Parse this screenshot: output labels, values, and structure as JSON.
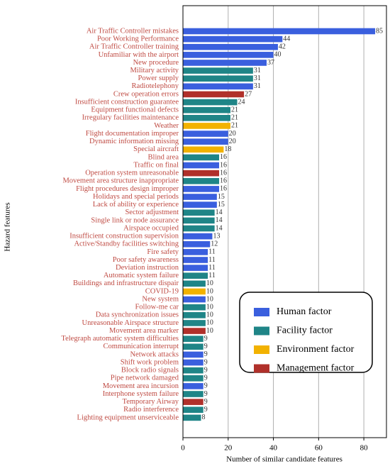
{
  "chart_data": {
    "type": "bar",
    "orientation": "horizontal",
    "xlabel": "Number of similar candidate features",
    "ylabel": "Hazard features",
    "categories": [
      "Air Traffic Controller mistakes",
      "Poor Working Performance",
      "Air Traffic Controller training",
      "Unfamiliar with the airport",
      "New procedure",
      "Military activity",
      "Power supply",
      "Radiotelephony",
      "Crew operation errors",
      "Insufficient construction guarantee",
      "Equipment functional defects",
      "Irregulary facilities maintenance",
      "Weather",
      "Flight documentation improper",
      "Dynamic information missing",
      "Special aircraft",
      "Blind area",
      "Traffic on final",
      "Operation system unreasonable",
      "Movement area structure inappropriate",
      "Flight procedures design improper",
      "Holidays and special periods",
      "Lack of ability or experience",
      "Sector adjustment",
      "Single link or node assurance",
      "Airspace occupied",
      "Insufficient construction supervision",
      "Active/Standby facilities switching",
      "Fire safety",
      "Poor safety awareness",
      "Deviation instruction",
      "Automatic system failure",
      "Buildings and infrastructure dispair",
      "COVID-19",
      "New system",
      "Follow-me car",
      "Data synchronization issues",
      "Unreasonable Airspace structure",
      "Movement area marker",
      "Telegraph automatic system difficulties",
      "Communication interrupt",
      "Network attacks",
      "Shift work problem",
      "Block radio signals",
      "Pipe network damaged",
      "Movement area incursion",
      "Interphone system failure",
      "Temporary Airway",
      "Radio interference",
      "Lighting equipment unserviceable"
    ],
    "series": [
      {
        "name": "Human factor",
        "color": "#3a5fde",
        "values": [
          85,
          44,
          42,
          40,
          37,
          null,
          null,
          31,
          null,
          null,
          null,
          null,
          null,
          20,
          20,
          null,
          null,
          16,
          null,
          null,
          16,
          15,
          15,
          null,
          null,
          null,
          13,
          12,
          11,
          11,
          11,
          null,
          null,
          null,
          10,
          null,
          null,
          null,
          null,
          null,
          null,
          9,
          9,
          null,
          null,
          9,
          null,
          null,
          null,
          null
        ]
      },
      {
        "name": "Facility factor",
        "color": "#1f8587",
        "values": [
          null,
          null,
          null,
          null,
          null,
          31,
          31,
          null,
          null,
          24,
          21,
          21,
          null,
          null,
          null,
          null,
          16,
          null,
          null,
          16,
          null,
          null,
          null,
          14,
          14,
          14,
          null,
          null,
          null,
          null,
          null,
          11,
          10,
          null,
          null,
          10,
          10,
          10,
          null,
          9,
          9,
          null,
          null,
          9,
          9,
          null,
          9,
          null,
          9,
          8
        ]
      },
      {
        "name": "Environment factor",
        "color": "#f2b200",
        "values": [
          null,
          null,
          null,
          null,
          null,
          null,
          null,
          null,
          null,
          null,
          null,
          null,
          21,
          null,
          null,
          18,
          null,
          null,
          null,
          null,
          null,
          null,
          null,
          null,
          null,
          null,
          null,
          null,
          null,
          null,
          null,
          null,
          null,
          10,
          null,
          null,
          null,
          null,
          null,
          null,
          null,
          null,
          null,
          null,
          null,
          null,
          null,
          null,
          null,
          null
        ]
      },
      {
        "name": "Management factor",
        "color": "#b0302a",
        "values": [
          null,
          null,
          null,
          null,
          null,
          null,
          null,
          null,
          27,
          null,
          null,
          null,
          null,
          null,
          null,
          null,
          null,
          null,
          16,
          null,
          null,
          null,
          null,
          null,
          null,
          null,
          null,
          null,
          null,
          null,
          null,
          null,
          null,
          null,
          null,
          null,
          null,
          null,
          10,
          null,
          null,
          null,
          null,
          null,
          null,
          null,
          null,
          9,
          null,
          null
        ]
      }
    ],
    "xlim": [
      0,
      90
    ],
    "xticks": [
      0,
      20,
      40,
      60,
      80
    ],
    "grid": true,
    "legend": "lower right"
  }
}
